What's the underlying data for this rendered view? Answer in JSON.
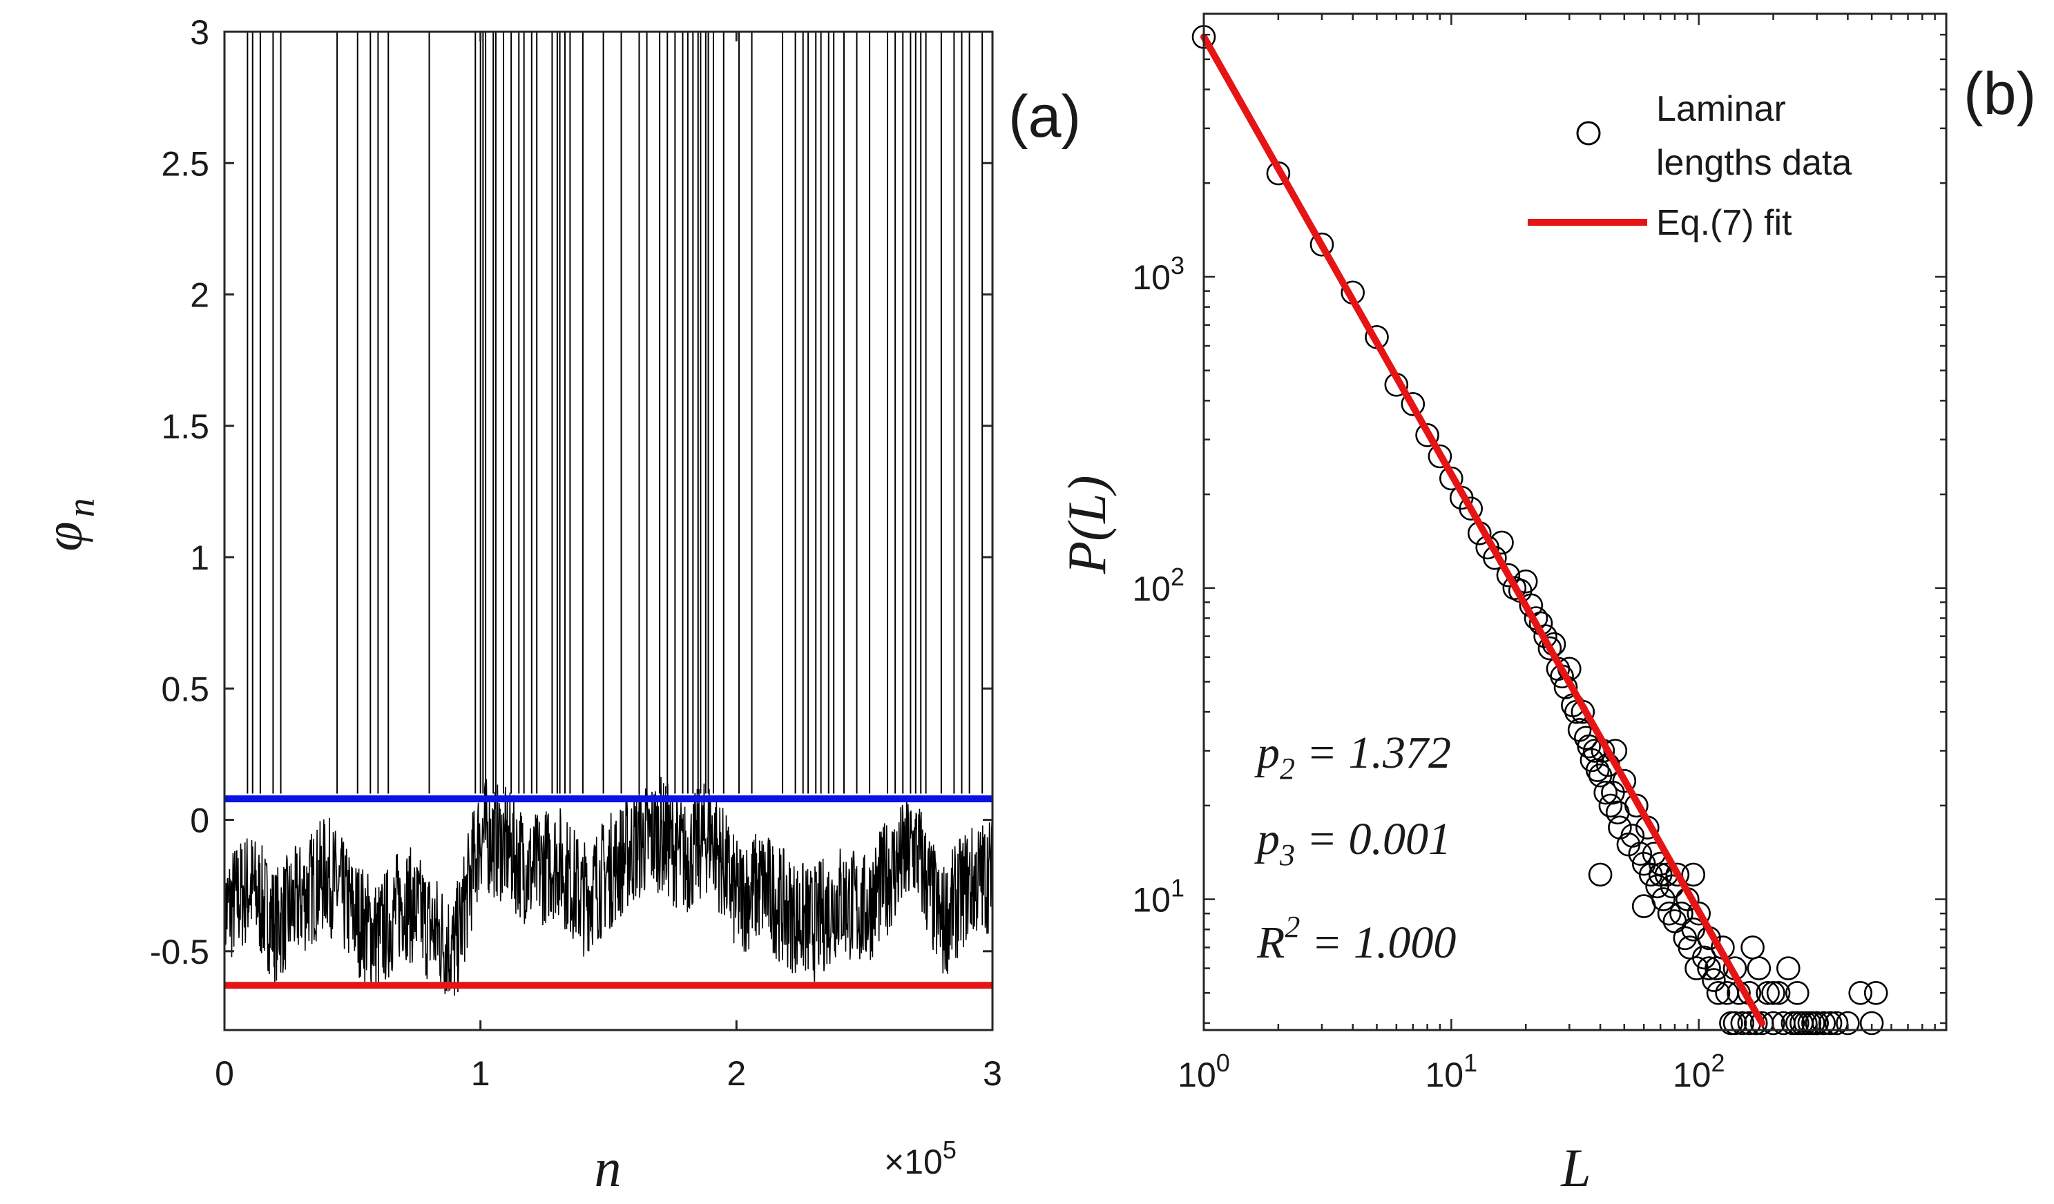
{
  "chart_data": [
    {
      "panel": "(a)",
      "type": "line",
      "xlabel": "n",
      "ylabel": "φ_n",
      "ylabel_main": "φ",
      "ylabel_sub": "n",
      "x_multiplier_label": "×10",
      "x_multiplier_exp": "5",
      "xlim": [
        0,
        3
      ],
      "ylim": [
        -0.8,
        3
      ],
      "xticks": [
        0,
        1,
        2,
        3
      ],
      "xtick_labels": [
        "0",
        "1",
        "2",
        "3"
      ],
      "yticks": [
        3,
        2.5,
        2,
        1.5,
        1,
        0.5,
        0,
        -0.5
      ],
      "ytick_labels": [
        "3",
        "2.5",
        "2",
        "1.5",
        "1",
        "0.5",
        "0",
        "-0.5"
      ],
      "hlines": [
        {
          "name": "upper-threshold",
          "y": 0.08,
          "color": "#0a12e6"
        },
        {
          "name": "lower-bound",
          "y": -0.63,
          "color": "#e61414"
        }
      ],
      "series": [
        {
          "name": "phi_n time series",
          "color": "#000000",
          "x_units": "×10^5",
          "laminar_baseline": [
            [
              0,
              -0.35
            ],
            [
              0.1,
              -0.25
            ],
            [
              0.2,
              -0.4
            ],
            [
              0.3,
              -0.3
            ],
            [
              0.4,
              -0.2
            ],
            [
              0.5,
              -0.35
            ],
            [
              0.6,
              -0.45
            ],
            [
              0.7,
              -0.3
            ],
            [
              0.8,
              -0.4
            ],
            [
              0.9,
              -0.5
            ],
            [
              1.0,
              -0.05
            ],
            [
              1.1,
              -0.1
            ],
            [
              1.2,
              -0.2
            ],
            [
              1.3,
              -0.15
            ],
            [
              1.4,
              -0.3
            ],
            [
              1.5,
              -0.2
            ],
            [
              1.6,
              -0.1
            ],
            [
              1.7,
              -0.05
            ],
            [
              1.8,
              -0.15
            ],
            [
              1.9,
              -0.05
            ],
            [
              2.0,
              -0.3
            ],
            [
              2.1,
              -0.25
            ],
            [
              2.2,
              -0.35
            ],
            [
              2.3,
              -0.4
            ],
            [
              2.4,
              -0.3
            ],
            [
              2.5,
              -0.35
            ],
            [
              2.6,
              -0.2
            ],
            [
              2.7,
              -0.1
            ],
            [
              2.8,
              -0.4
            ],
            [
              2.9,
              -0.25
            ],
            [
              3.0,
              -0.2
            ]
          ],
          "bursts_x": [
            0.09,
            0.11,
            0.14,
            0.19,
            0.22,
            0.44,
            0.52,
            0.57,
            0.6,
            0.64,
            0.8,
            0.98,
            1.0,
            1.01,
            1.02,
            1.05,
            1.06,
            1.09,
            1.12,
            1.15,
            1.17,
            1.2,
            1.22,
            1.28,
            1.3,
            1.31,
            1.33,
            1.35,
            1.4,
            1.48,
            1.55,
            1.62,
            1.65,
            1.7,
            1.73,
            1.76,
            1.79,
            1.81,
            1.83,
            1.85,
            1.86,
            1.88,
            1.89,
            1.91,
            1.95,
            2.01,
            2.06,
            2.18,
            2.23,
            2.26,
            2.28,
            2.31,
            2.33,
            2.36,
            2.38,
            2.42,
            2.47,
            2.52,
            2.59,
            2.62,
            2.65,
            2.68,
            2.7,
            2.72,
            2.74,
            2.8,
            2.85,
            2.88,
            2.91,
            2.96
          ]
        }
      ]
    },
    {
      "panel": "(b)",
      "type": "scatter",
      "xscale": "log",
      "yscale": "log",
      "xlabel": "L",
      "ylabel": "P(L)",
      "xlim": [
        1,
        1000
      ],
      "ylim": [
        3.8,
        7000
      ],
      "xticks": [
        1,
        10,
        100
      ],
      "xtick_labels": [
        {
          "base": "10",
          "exp": "0"
        },
        {
          "base": "10",
          "exp": "1"
        },
        {
          "base": "10",
          "exp": "2"
        }
      ],
      "yticks": [
        10,
        100,
        1000
      ],
      "ytick_labels": [
        {
          "base": "10",
          "exp": "1"
        },
        {
          "base": "10",
          "exp": "2"
        },
        {
          "base": "10",
          "exp": "3"
        }
      ],
      "legend": {
        "position": "top-right",
        "entries": [
          {
            "label_lines": [
              "Laminar",
              "lengths data"
            ],
            "marker": "circle"
          },
          {
            "label": "Eq.(7) fit",
            "marker": "line",
            "color": "#e61414"
          }
        ]
      },
      "fit": {
        "name": "Eq.(7) fit",
        "color": "#e61414",
        "points": [
          [
            1,
            5900
          ],
          [
            180,
            4
          ]
        ]
      },
      "annotations": [
        {
          "var": "p",
          "sub": "2",
          "rest": " = 1.372"
        },
        {
          "var": "p",
          "sub": "3",
          "rest": " = 0.001"
        },
        {
          "var": "R",
          "sup": "2",
          "rest": " = 1.000"
        }
      ],
      "series": [
        {
          "name": "Laminar lengths data",
          "marker": "circle",
          "points": [
            [
              1,
              5900
            ],
            [
              2,
              2150
            ],
            [
              3,
              1270
            ],
            [
              4,
              890
            ],
            [
              5,
              640
            ],
            [
              6,
              450
            ],
            [
              7,
              390
            ],
            [
              8,
              310
            ],
            [
              9,
              265
            ],
            [
              10,
              225
            ],
            [
              11,
              195
            ],
            [
              12,
              180
            ],
            [
              13,
              150
            ],
            [
              14,
              135
            ],
            [
              15,
              125
            ],
            [
              16,
              140
            ],
            [
              17,
              110
            ],
            [
              18,
              100
            ],
            [
              19,
              98
            ],
            [
              20,
              105
            ],
            [
              21,
              88
            ],
            [
              22,
              80
            ],
            [
              23,
              77
            ],
            [
              24,
              70
            ],
            [
              25,
              64
            ],
            [
              26,
              66
            ],
            [
              27,
              55
            ],
            [
              28,
              52
            ],
            [
              29,
              48
            ],
            [
              30,
              55
            ],
            [
              31,
              42
            ],
            [
              32,
              40
            ],
            [
              33,
              35
            ],
            [
              34,
              40
            ],
            [
              35,
              33
            ],
            [
              36,
              31
            ],
            [
              37,
              28
            ],
            [
              38,
              30
            ],
            [
              39,
              26
            ],
            [
              40,
              25
            ],
            [
              41,
              30
            ],
            [
              42,
              22
            ],
            [
              43,
              27
            ],
            [
              44,
              20
            ],
            [
              45,
              22
            ],
            [
              46,
              30
            ],
            [
              47,
              19
            ],
            [
              48,
              17
            ],
            [
              50,
              24
            ],
            [
              52,
              15
            ],
            [
              54,
              16
            ],
            [
              56,
              20
            ],
            [
              58,
              14
            ],
            [
              60,
              13
            ],
            [
              62,
              17
            ],
            [
              64,
              12
            ],
            [
              66,
              14
            ],
            [
              68,
              11
            ],
            [
              70,
              13
            ],
            [
              72,
              10
            ],
            [
              74,
              12
            ],
            [
              76,
              9
            ],
            [
              78,
              11
            ],
            [
              80,
              8.5
            ],
            [
              82,
              12
            ],
            [
              85,
              9
            ],
            [
              88,
              7.5
            ],
            [
              90,
              10
            ],
            [
              92,
              7
            ],
            [
              95,
              8
            ],
            [
              98,
              6
            ],
            [
              100,
              9
            ],
            [
              105,
              6.5
            ],
            [
              110,
              7.5
            ],
            [
              115,
              5.5
            ],
            [
              118,
              6
            ],
            [
              120,
              5
            ],
            [
              125,
              7
            ],
            [
              130,
              5
            ],
            [
              135,
              4
            ],
            [
              140,
              6
            ],
            [
              145,
              5
            ],
            [
              150,
              4
            ],
            [
              160,
              5
            ],
            [
              165,
              7
            ],
            [
              170,
              4
            ],
            [
              175,
              6
            ],
            [
              180,
              4
            ],
            [
              190,
              5
            ],
            [
              200,
              4
            ],
            [
              210,
              5
            ],
            [
              220,
              4
            ],
            [
              230,
              6
            ],
            [
              240,
              4
            ],
            [
              250,
              5
            ],
            [
              260,
              4
            ],
            [
              270,
              4
            ],
            [
              280,
              4
            ],
            [
              290,
              4
            ],
            [
              300,
              4
            ],
            [
              320,
              4
            ],
            [
              340,
              4
            ],
            [
              360,
              4
            ],
            [
              400,
              4
            ],
            [
              450,
              5
            ],
            [
              500,
              4
            ],
            [
              520,
              5
            ],
            [
              40,
              12
            ],
            [
              60,
              9.5
            ],
            [
              70,
              12
            ],
            [
              95,
              12
            ],
            [
              110,
              6
            ],
            [
              140,
              4
            ],
            [
              160,
              4
            ],
            [
              200,
              5
            ],
            [
              250,
              4
            ],
            [
              300,
              4
            ]
          ]
        }
      ]
    }
  ],
  "panel_labels": {
    "a": "(a)",
    "b": "(b)"
  }
}
